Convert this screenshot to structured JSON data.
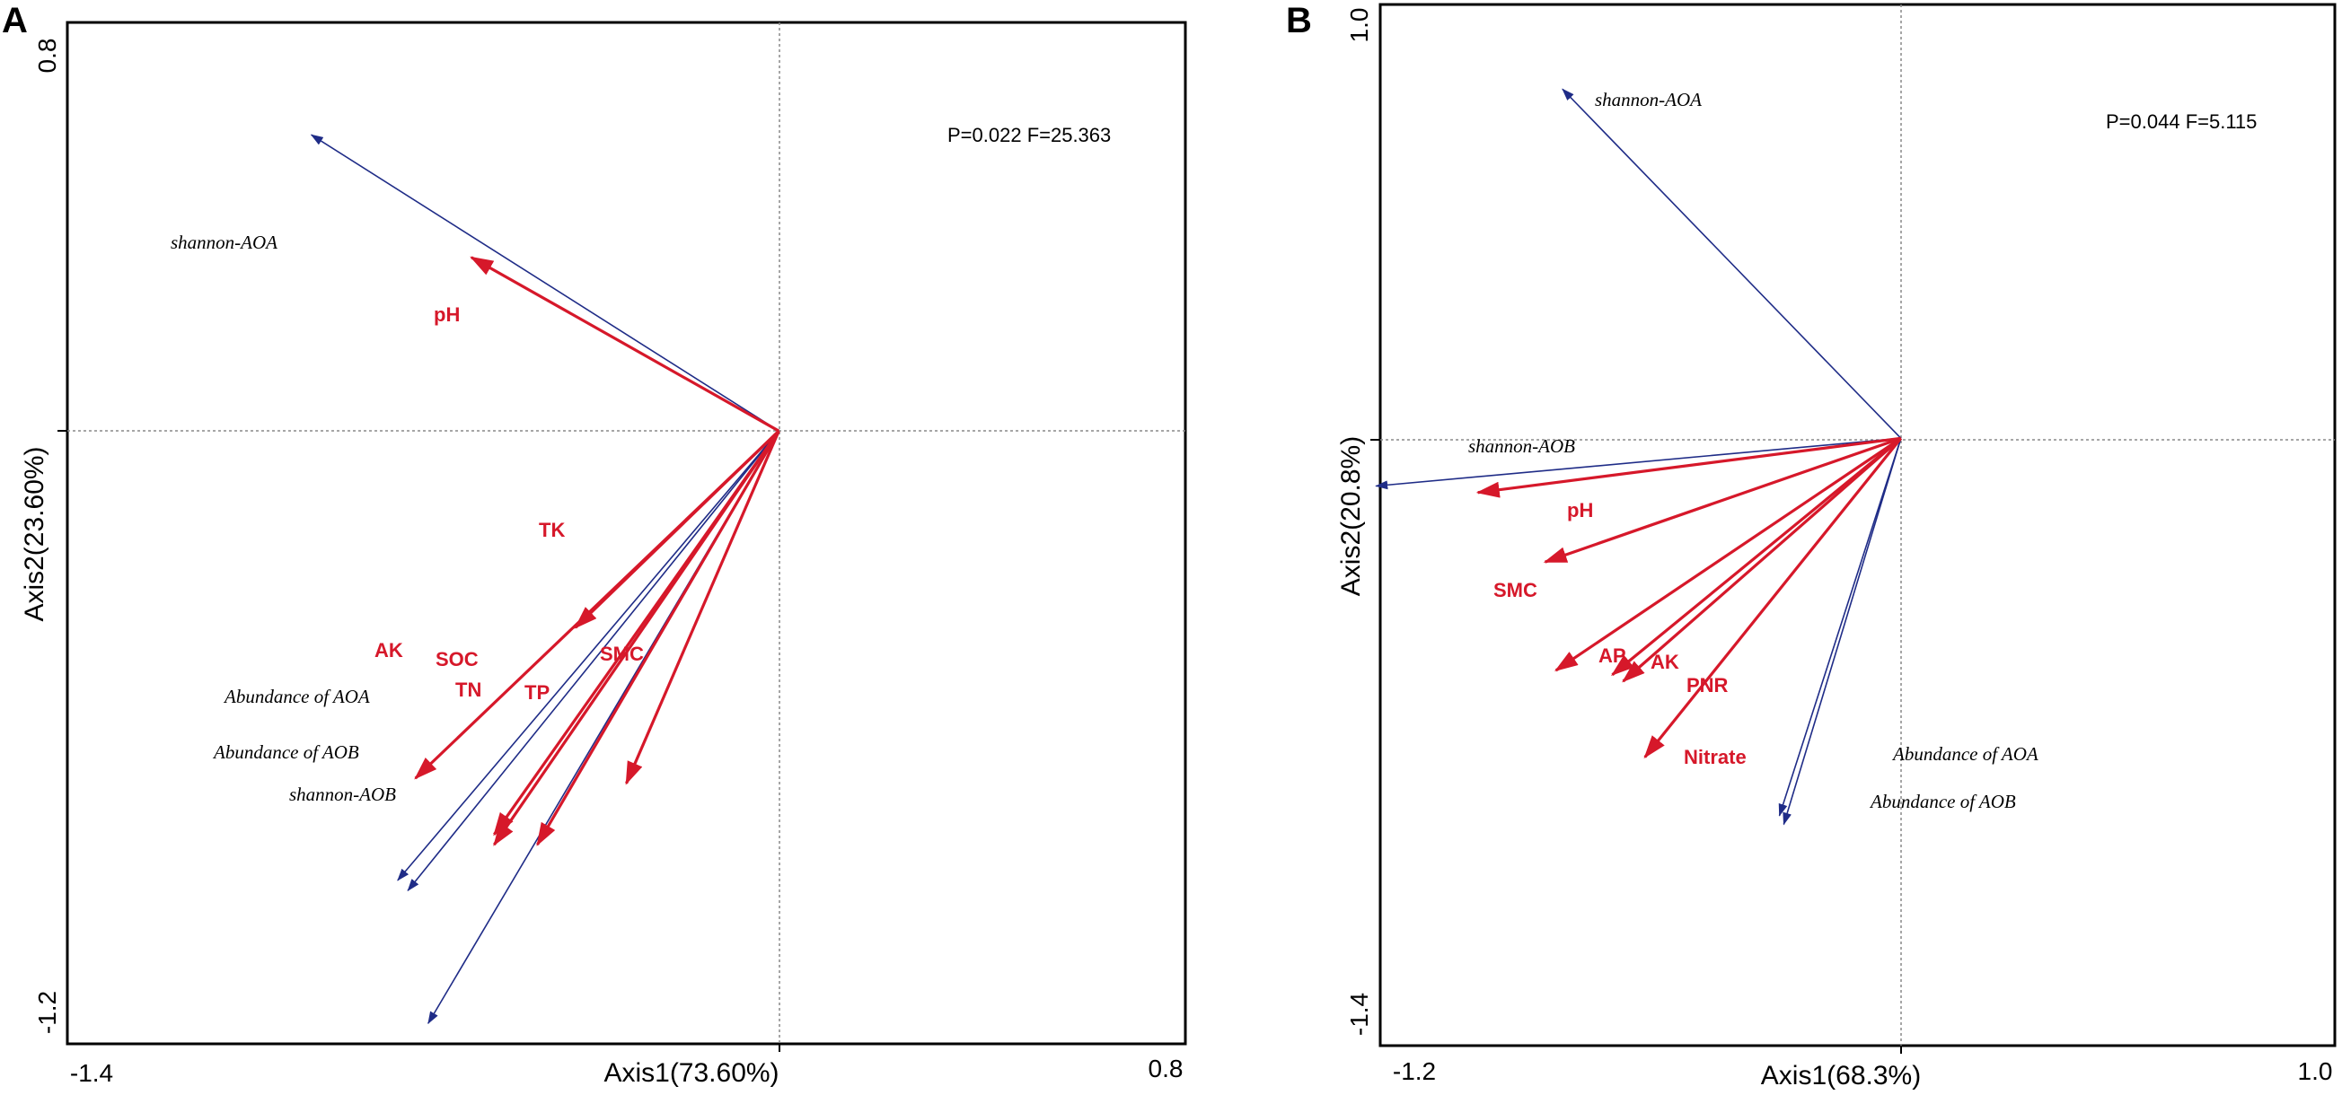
{
  "chart_data": [
    {
      "type": "scatter",
      "panel": "A",
      "xlabel": "Axis1(73.60%)",
      "ylabel": "Axis2(23.60%)",
      "xlim": [
        -1.4,
        0.8
      ],
      "ylim": [
        -1.2,
        0.8
      ],
      "xtick_labels": [
        "-1.4",
        "0.8"
      ],
      "ytick_labels": [
        "0.8",
        "-1.2"
      ],
      "stats": "P=0.022  F=25.363",
      "env_vectors": [
        {
          "name": "pH",
          "x": -0.605,
          "y": 0.34
        },
        {
          "name": "TK",
          "x": -0.4,
          "y": -0.385
        },
        {
          "name": "AK",
          "x": -0.715,
          "y": -0.68
        },
        {
          "name": "SOC",
          "x": -0.56,
          "y": -0.79
        },
        {
          "name": "TN",
          "x": -0.56,
          "y": -0.81
        },
        {
          "name": "TP",
          "x": -0.475,
          "y": -0.81
        },
        {
          "name": "SMC",
          "x": -0.3,
          "y": -0.69
        }
      ],
      "response_vectors": [
        {
          "name": "shannon-AOA",
          "x": -0.92,
          "y": 0.58
        },
        {
          "name": "Abundance of AOA",
          "x": -0.75,
          "y": -0.88
        },
        {
          "name": "Abundance of AOB",
          "x": -0.73,
          "y": -0.9
        },
        {
          "name": "shannon-AOB",
          "x": -0.69,
          "y": -1.16
        }
      ]
    },
    {
      "type": "scatter",
      "panel": "B",
      "xlabel": "Axis1(68.3%)",
      "ylabel": "Axis2(20.8%)",
      "xlim": [
        -1.2,
        1.0
      ],
      "ylim": [
        -1.4,
        1.0
      ],
      "xtick_labels": [
        "-1.2",
        "1.0"
      ],
      "ytick_labels": [
        "1.0",
        "-1.4"
      ],
      "stats": "P=0.044  F=5.115",
      "env_vectors": [
        {
          "name": "pH",
          "x": -0.975,
          "y": -0.125
        },
        {
          "name": "SMC",
          "x": -0.82,
          "y": -0.285
        },
        {
          "name": "AP",
          "x": -0.795,
          "y": -0.535
        },
        {
          "name": "AK",
          "x": -0.665,
          "y": -0.545
        },
        {
          "name": "PNR",
          "x": -0.64,
          "y": -0.56
        },
        {
          "name": "Nitrate",
          "x": -0.59,
          "y": -0.735
        }
      ],
      "response_vectors": [
        {
          "name": "shannon-AOA",
          "x": -0.78,
          "y": 0.805
        },
        {
          "name": "shannon-AOB",
          "x": -1.21,
          "y": -0.11
        },
        {
          "name": "Abundance of AOA",
          "x": -0.27,
          "y": -0.89
        },
        {
          "name": "Abundance of AOB",
          "x": -0.28,
          "y": -0.87
        }
      ]
    }
  ],
  "colors": {
    "env": "#d6182a",
    "response": "#1f2c87",
    "axis": "#000000",
    "grid": "#888888"
  }
}
